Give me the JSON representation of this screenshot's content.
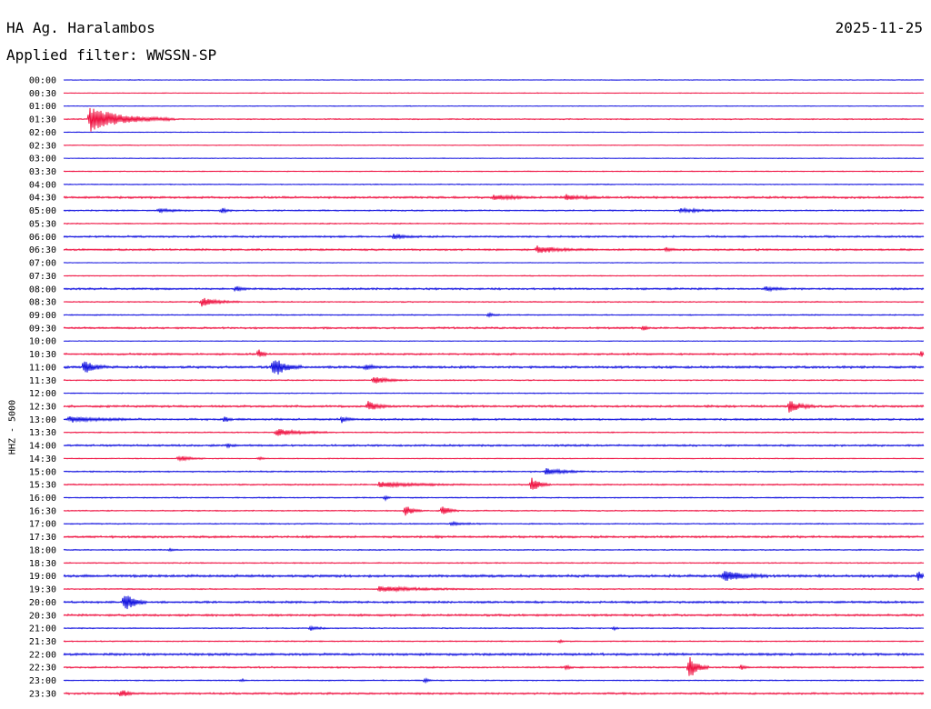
{
  "header": {
    "station": "HA Ag. Haralambos",
    "date": "2025-11-25",
    "filter": "Applied filter: WWSSN-SP"
  },
  "chart_data": {
    "type": "line",
    "title": "HA Ag. Haralambos",
    "subtitle": "Applied filter: WWSSN-SP",
    "ylabel": "HHZ - 5000",
    "colors": {
      "even": "#0000dd",
      "odd": "#ee0033"
    },
    "rows": [
      "00:00",
      "00:30",
      "01:00",
      "01:30",
      "02:00",
      "02:30",
      "03:00",
      "03:30",
      "04:00",
      "04:30",
      "05:00",
      "05:30",
      "06:00",
      "06:30",
      "07:00",
      "07:30",
      "08:00",
      "08:30",
      "09:00",
      "09:30",
      "10:00",
      "10:30",
      "11:00",
      "11:30",
      "12:00",
      "12:30",
      "13:00",
      "13:30",
      "14:00",
      "14:30",
      "15:00",
      "15:30",
      "16:00",
      "16:30",
      "17:00",
      "17:30",
      "18:00",
      "18:30",
      "19:00",
      "19:30",
      "20:00",
      "20:30",
      "21:00",
      "21:30",
      "22:00",
      "22:30",
      "23:00",
      "23:30"
    ],
    "row_minutes": 30,
    "noise": [
      0.3,
      0.3,
      0.3,
      0.5,
      0.3,
      0.3,
      0.3,
      0.4,
      0.4,
      0.9,
      0.6,
      0.5,
      0.8,
      0.8,
      0.3,
      0.4,
      0.8,
      0.5,
      0.5,
      0.8,
      0.3,
      0.8,
      1.0,
      0.5,
      0.4,
      0.9,
      0.8,
      0.5,
      0.8,
      0.4,
      0.6,
      0.6,
      0.5,
      0.5,
      0.5,
      0.9,
      0.5,
      0.5,
      1.1,
      0.5,
      0.9,
      0.9,
      0.5,
      0.5,
      1.0,
      0.7,
      0.5,
      0.8
    ],
    "events": [
      {
        "row": 3,
        "minute": 0.9,
        "amp": 14,
        "duration": 3.0
      },
      {
        "row": 9,
        "minute": 15.0,
        "amp": 3,
        "duration": 1.5
      },
      {
        "row": 9,
        "minute": 17.5,
        "amp": 3,
        "duration": 1.5
      },
      {
        "row": 10,
        "minute": 3.3,
        "amp": 2,
        "duration": 1.2
      },
      {
        "row": 10,
        "minute": 5.5,
        "amp": 3,
        "duration": 0.4
      },
      {
        "row": 10,
        "minute": 21.5,
        "amp": 2,
        "duration": 2.0
      },
      {
        "row": 12,
        "minute": 11.5,
        "amp": 3,
        "duration": 1.0
      },
      {
        "row": 13,
        "minute": 16.5,
        "amp": 4,
        "duration": 1.8
      },
      {
        "row": 13,
        "minute": 21.0,
        "amp": 2,
        "duration": 0.6
      },
      {
        "row": 16,
        "minute": 6.0,
        "amp": 3,
        "duration": 0.5
      },
      {
        "row": 16,
        "minute": 24.5,
        "amp": 2,
        "duration": 1.0
      },
      {
        "row": 17,
        "minute": 4.8,
        "amp": 5,
        "duration": 1.4
      },
      {
        "row": 18,
        "minute": 14.8,
        "amp": 2,
        "duration": 0.5
      },
      {
        "row": 19,
        "minute": 20.2,
        "amp": 3,
        "duration": 0.3
      },
      {
        "row": 21,
        "minute": 6.8,
        "amp": 7,
        "duration": 0.3
      },
      {
        "row": 21,
        "minute": 29.9,
        "amp": 3,
        "duration": 0.2
      },
      {
        "row": 22,
        "minute": 0.7,
        "amp": 9,
        "duration": 0.8
      },
      {
        "row": 22,
        "minute": 7.3,
        "amp": 13,
        "duration": 1.0
      },
      {
        "row": 22,
        "minute": 10.5,
        "amp": 3,
        "duration": 0.7
      },
      {
        "row": 23,
        "minute": 10.8,
        "amp": 4,
        "duration": 1.2
      },
      {
        "row": 25,
        "minute": 10.6,
        "amp": 6,
        "duration": 0.8
      },
      {
        "row": 25,
        "minute": 25.3,
        "amp": 7,
        "duration": 0.9
      },
      {
        "row": 26,
        "minute": 0.2,
        "amp": 3,
        "duration": 2.5
      },
      {
        "row": 26,
        "minute": 5.6,
        "amp": 4,
        "duration": 0.3
      },
      {
        "row": 26,
        "minute": 9.7,
        "amp": 3,
        "duration": 0.6
      },
      {
        "row": 27,
        "minute": 7.4,
        "amp": 4,
        "duration": 2.0
      },
      {
        "row": 28,
        "minute": 5.7,
        "amp": 2,
        "duration": 0.4
      },
      {
        "row": 29,
        "minute": 4.0,
        "amp": 3,
        "duration": 1.0
      },
      {
        "row": 29,
        "minute": 6.8,
        "amp": 2,
        "duration": 0.3
      },
      {
        "row": 30,
        "minute": 16.8,
        "amp": 4,
        "duration": 1.4
      },
      {
        "row": 31,
        "minute": 16.3,
        "amp": 8,
        "duration": 0.7
      },
      {
        "row": 31,
        "minute": 11.0,
        "amp": 3,
        "duration": 3.0
      },
      {
        "row": 32,
        "minute": 11.2,
        "amp": 3,
        "duration": 0.2
      },
      {
        "row": 33,
        "minute": 11.9,
        "amp": 7,
        "duration": 0.6
      },
      {
        "row": 33,
        "minute": 13.2,
        "amp": 6,
        "duration": 0.6
      },
      {
        "row": 34,
        "minute": 13.5,
        "amp": 2,
        "duration": 1.2
      },
      {
        "row": 36,
        "minute": 3.7,
        "amp": 2,
        "duration": 0.3
      },
      {
        "row": 38,
        "minute": 23.0,
        "amp": 6,
        "duration": 1.6
      },
      {
        "row": 38,
        "minute": 29.8,
        "amp": 10,
        "duration": 0.2
      },
      {
        "row": 39,
        "minute": 11.0,
        "amp": 3,
        "duration": 3.5
      },
      {
        "row": 40,
        "minute": 2.1,
        "amp": 12,
        "duration": 0.8
      },
      {
        "row": 42,
        "minute": 8.6,
        "amp": 3,
        "duration": 0.6
      },
      {
        "row": 42,
        "minute": 19.2,
        "amp": 2,
        "duration": 0.2
      },
      {
        "row": 43,
        "minute": 17.3,
        "amp": 2,
        "duration": 0.2
      },
      {
        "row": 45,
        "minute": 17.5,
        "amp": 3,
        "duration": 0.3
      },
      {
        "row": 45,
        "minute": 21.8,
        "amp": 14,
        "duration": 0.7
      },
      {
        "row": 45,
        "minute": 23.6,
        "amp": 3,
        "duration": 0.3
      },
      {
        "row": 46,
        "minute": 6.2,
        "amp": 2,
        "duration": 0.2
      },
      {
        "row": 46,
        "minute": 12.6,
        "amp": 3,
        "duration": 0.3
      },
      {
        "row": 47,
        "minute": 2.0,
        "amp": 5,
        "duration": 0.5
      }
    ]
  }
}
